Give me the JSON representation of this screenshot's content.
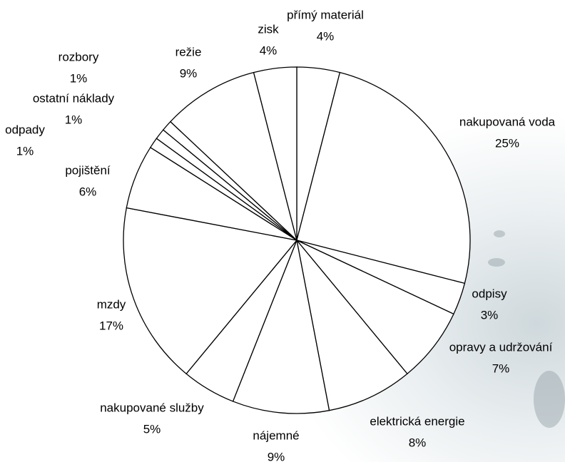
{
  "chart_data": {
    "type": "pie",
    "categories": [
      "přímý materiál",
      "nakupovaná voda",
      "odpisy",
      "opravy a udržování",
      "elektrická energie",
      "nájemné",
      "nakupované služby",
      "mzdy",
      "pojištění",
      "odpady",
      "ostatní náklady",
      "rozbory",
      "režie",
      "zisk"
    ],
    "values": [
      4,
      25,
      3,
      7,
      8,
      9,
      5,
      17,
      6,
      1,
      1,
      1,
      9,
      4
    ],
    "value_labels": [
      "4%",
      "25%",
      "3%",
      "7%",
      "8%",
      "9%",
      "5%",
      "17%",
      "6%",
      "1%",
      "1%",
      "1%",
      "9%",
      "4%"
    ],
    "color": "#ffffff"
  }
}
